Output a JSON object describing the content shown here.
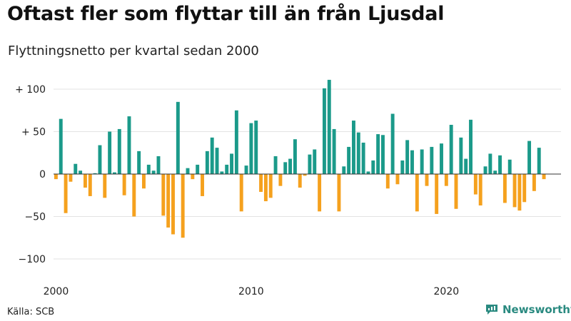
{
  "header": {
    "title": "Oftast fler som flyttar till än från Ljusdal",
    "subtitle": "Flyttningsnetto per kvartal sedan 2000"
  },
  "footer": {
    "source": "Källa: SCB",
    "brand": "Newsworthy"
  },
  "colors": {
    "positive": "#1b9a8a",
    "negative": "#f5a11e",
    "grid": "#e3e3e3",
    "brand": "#2a8a80"
  },
  "chart_data": {
    "type": "bar",
    "ylim": [
      -110,
      115
    ],
    "y_ticks": [
      {
        "value": 100,
        "label": "+ 100"
      },
      {
        "value": 50,
        "label": "+  50"
      },
      {
        "value": 0,
        "label": "0"
      },
      {
        "value": -50,
        "label": "−50"
      },
      {
        "value": -100,
        "label": "−100"
      }
    ],
    "x_ticks": [
      {
        "year": 2000,
        "label": "2000"
      },
      {
        "year": 2010,
        "label": "2010"
      },
      {
        "year": 2020,
        "label": "2020"
      }
    ],
    "grid": true,
    "categories": [
      "2000Q1",
      "2000Q2",
      "2000Q3",
      "2000Q4",
      "2001Q1",
      "2001Q2",
      "2001Q3",
      "2001Q4",
      "2002Q1",
      "2002Q2",
      "2002Q3",
      "2002Q4",
      "2003Q1",
      "2003Q2",
      "2003Q3",
      "2003Q4",
      "2004Q1",
      "2004Q2",
      "2004Q3",
      "2004Q4",
      "2005Q1",
      "2005Q2",
      "2005Q3",
      "2005Q4",
      "2006Q1",
      "2006Q2",
      "2006Q3",
      "2006Q4",
      "2007Q1",
      "2007Q2",
      "2007Q3",
      "2007Q4",
      "2008Q1",
      "2008Q2",
      "2008Q3",
      "2008Q4",
      "2009Q1",
      "2009Q2",
      "2009Q3",
      "2009Q4",
      "2010Q1",
      "2010Q2",
      "2010Q3",
      "2010Q4",
      "2011Q1",
      "2011Q2",
      "2011Q3",
      "2011Q4",
      "2012Q1",
      "2012Q2",
      "2012Q3",
      "2012Q4",
      "2013Q1",
      "2013Q2",
      "2013Q3",
      "2013Q4",
      "2014Q1",
      "2014Q2",
      "2014Q3",
      "2014Q4",
      "2015Q1",
      "2015Q2",
      "2015Q3",
      "2015Q4",
      "2016Q1",
      "2016Q2",
      "2016Q3",
      "2016Q4",
      "2017Q1",
      "2017Q2",
      "2017Q3",
      "2017Q4",
      "2018Q1",
      "2018Q2",
      "2018Q3",
      "2018Q4",
      "2019Q1",
      "2019Q2",
      "2019Q3",
      "2019Q4",
      "2020Q1",
      "2020Q2",
      "2020Q3",
      "2020Q4",
      "2021Q1",
      "2021Q2",
      "2021Q3",
      "2021Q4",
      "2022Q1",
      "2022Q2",
      "2022Q3",
      "2022Q4",
      "2023Q1",
      "2023Q2",
      "2023Q3",
      "2023Q4",
      "2024Q1",
      "2024Q2",
      "2024Q3",
      "2024Q4",
      "2025Q1",
      "2025Q2",
      "2025Q3",
      "2025Q4"
    ],
    "values": [
      -6,
      65,
      -46,
      -9,
      12,
      4,
      -16,
      -26,
      1,
      34,
      -28,
      50,
      2,
      53,
      -25,
      68,
      -50,
      27,
      -17,
      11,
      4,
      21,
      -49,
      -63,
      -71,
      85,
      -75,
      7,
      -6,
      11,
      -26,
      27,
      43,
      31,
      3,
      11,
      24,
      75,
      -44,
      10,
      60,
      63,
      -21,
      -32,
      -28,
      21,
      -14,
      14,
      18,
      41,
      -16,
      -2,
      23,
      29,
      -44,
      101,
      111,
      53,
      -44,
      9,
      32,
      63,
      49,
      37,
      3,
      16,
      47,
      46,
      -17,
      71,
      -12,
      16,
      40,
      28,
      -44,
      29,
      -14,
      32,
      -47,
      36,
      -14,
      58,
      -41,
      43,
      18,
      64,
      -24,
      -37,
      9,
      24,
      4,
      22,
      -34,
      17,
      -39,
      -43,
      -33,
      39,
      -20,
      31,
      -6,
      0,
      0,
      0
    ]
  }
}
